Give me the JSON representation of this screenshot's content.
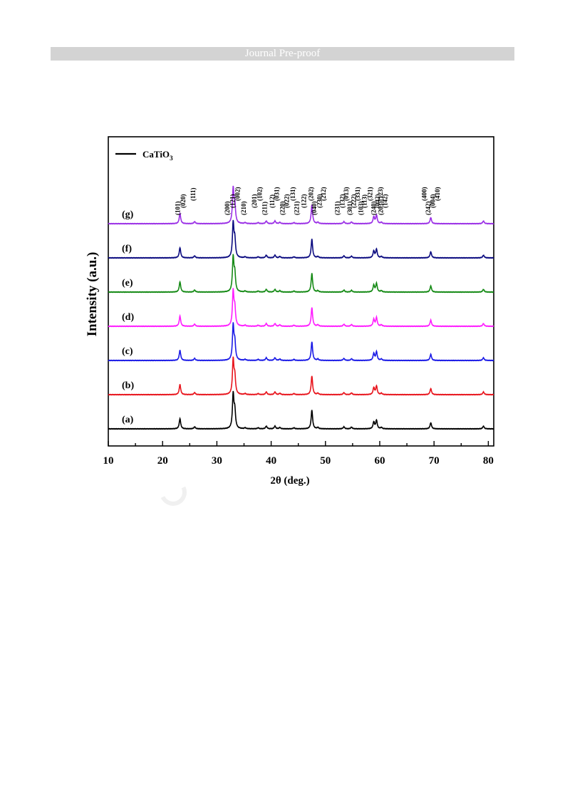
{
  "header": {
    "banner_text": "Journal Pre-proof"
  },
  "chart_data": {
    "type": "line",
    "title": "",
    "xlabel": "2θ (deg.)",
    "ylabel": "Intensity (a.u.)",
    "xlim": [
      10,
      81
    ],
    "x_ticks": [
      10,
      20,
      30,
      40,
      50,
      60,
      70,
      80
    ],
    "y_ticks_shown": false,
    "legend": {
      "position": "top-left",
      "label_main": "CaTiO",
      "label_sub": "3",
      "color": "#000000"
    },
    "series": [
      {
        "name": "(a)",
        "color": "#000000"
      },
      {
        "name": "(b)",
        "color": "#e8141c"
      },
      {
        "name": "(c)",
        "color": "#1a1ae6"
      },
      {
        "name": "(d)",
        "color": "#ff1dff"
      },
      {
        "name": "(e)",
        "color": "#158a15"
      },
      {
        "name": "(f)",
        "color": "#0b0b80"
      },
      {
        "name": "(g)",
        "color": "#9b30e6"
      }
    ],
    "peaks": [
      {
        "x": 23.2,
        "h": 0.3
      },
      {
        "x": 25.9,
        "h": 0.06
      },
      {
        "x": 33.0,
        "h": 1.0
      },
      {
        "x": 33.3,
        "h": 0.5
      },
      {
        "x": 35.2,
        "h": 0.03
      },
      {
        "x": 37.6,
        "h": 0.03
      },
      {
        "x": 39.1,
        "h": 0.08
      },
      {
        "x": 40.7,
        "h": 0.08
      },
      {
        "x": 41.6,
        "h": 0.04
      },
      {
        "x": 44.2,
        "h": 0.03
      },
      {
        "x": 47.5,
        "h": 0.55
      },
      {
        "x": 48.6,
        "h": 0.04
      },
      {
        "x": 53.4,
        "h": 0.06
      },
      {
        "x": 54.8,
        "h": 0.05
      },
      {
        "x": 58.9,
        "h": 0.2
      },
      {
        "x": 59.4,
        "h": 0.25
      },
      {
        "x": 60.3,
        "h": 0.04
      },
      {
        "x": 69.4,
        "h": 0.18
      },
      {
        "x": 79.1,
        "h": 0.08
      }
    ],
    "annotations": [
      {
        "text": "(101)",
        "x": 23.2
      },
      {
        "text": "(020)",
        "x": 24.2
      },
      {
        "text": "(111)",
        "x": 26.0
      },
      {
        "text": "(200)",
        "x": 32.3
      },
      {
        "text": "(121)",
        "x": 33.3
      },
      {
        "text": "(002)",
        "x": 34.2
      },
      {
        "text": "(210)",
        "x": 35.3
      },
      {
        "text": "(201)",
        "x": 37.3
      },
      {
        "text": "(102)",
        "x": 38.3
      },
      {
        "text": "(211)",
        "x": 39.2
      },
      {
        "text": "(112)",
        "x": 40.6
      },
      {
        "text": "(031)",
        "x": 41.4
      },
      {
        "text": "(220)",
        "x": 42.5
      },
      {
        "text": "(022)",
        "x": 43.3
      },
      {
        "text": "(131)",
        "x": 44.4
      },
      {
        "text": "(221)",
        "x": 45.1
      },
      {
        "text": "(122)",
        "x": 46.4
      },
      {
        "text": "(202)",
        "x": 47.7
      },
      {
        "text": "(040)",
        "x": 48.3
      },
      {
        "text": "(230)",
        "x": 49.3
      },
      {
        "text": "(212)",
        "x": 50.0
      },
      {
        "text": "(231)",
        "x": 52.6
      },
      {
        "text": "(132)",
        "x": 53.5
      },
      {
        "text": "(013)",
        "x": 54.2
      },
      {
        "text": "(301)",
        "x": 54.9
      },
      {
        "text": "(222)",
        "x": 55.6
      },
      {
        "text": "(331)",
        "x": 56.3
      },
      {
        "text": "(103)",
        "x": 56.9
      },
      {
        "text": "(113)",
        "x": 57.6
      },
      {
        "text": "(321)",
        "x": 58.6
      },
      {
        "text": "(240)",
        "x": 59.3
      },
      {
        "text": "(042)",
        "x": 60.0
      },
      {
        "text": "(123)",
        "x": 60.5
      },
      {
        "text": "(203)",
        "x": 60.6
      },
      {
        "text": "(142)",
        "x": 61.4
      },
      {
        "text": "(400)",
        "x": 68.6
      },
      {
        "text": "(242)",
        "x": 69.3
      },
      {
        "text": "(004)",
        "x": 70.2
      },
      {
        "text": "(410)",
        "x": 71.0
      }
    ]
  }
}
